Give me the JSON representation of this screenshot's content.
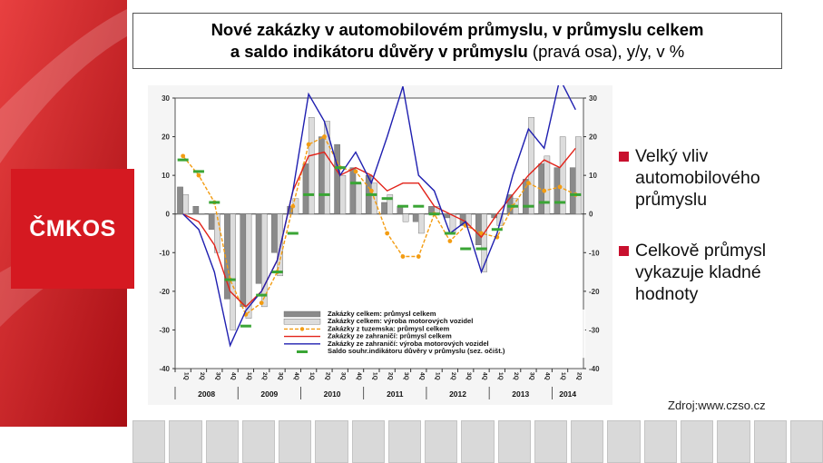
{
  "title": {
    "line1": "Nové zakázky v automobilovém průmyslu, v průmyslu celkem",
    "line2_bold": "a saldo indikátoru důvěry v průmyslu",
    "line2_rest": " (pravá osa), y/y, v %"
  },
  "logo": {
    "text": "ČMKOS"
  },
  "bullets": [
    {
      "text": "Velký vliv automobilového průmyslu"
    },
    {
      "text": "Celkově průmysl vykazuje kladné hodnoty"
    }
  ],
  "source": "Zdroj:www.czso.cz",
  "colors": {
    "red": "#e2231a",
    "blue": "#1f1fb0",
    "orange": "#f39c12",
    "green": "#3aa535",
    "darkbar": "#8a8a8a",
    "lightbar": "#dcdcdc"
  },
  "chart_data": {
    "type": "bar",
    "ylim": [
      -40,
      30
    ],
    "yticks": [
      "30",
      "20",
      "10",
      "0",
      "-10",
      "-20",
      "-30",
      "-40"
    ],
    "ytick_values": [
      30,
      20,
      10,
      0,
      -10,
      -20,
      -30,
      -40
    ],
    "quarter_labels": [
      "1Q",
      "2Q",
      "3Q",
      "4Q",
      "1Q",
      "2Q",
      "3Q",
      "4Q",
      "1Q",
      "2Q",
      "3Q",
      "4Q",
      "1Q",
      "2Q",
      "3Q",
      "4Q",
      "1Q",
      "2Q",
      "3Q",
      "4Q",
      "1Q",
      "2Q",
      "3Q",
      "4Q",
      "1Q",
      "2Q"
    ],
    "year_labels": [
      "2008",
      "2009",
      "2010",
      "2011",
      "2012",
      "2013",
      "2014"
    ],
    "series": [
      {
        "name": "Zakázky celkem: průmysl celkem",
        "kind": "bar",
        "color": "#8a8a8a",
        "values": [
          7,
          2,
          -4,
          -22,
          -24,
          -18,
          -10,
          2,
          13,
          20,
          18,
          12,
          10,
          3,
          2,
          -2,
          2,
          -1,
          -3,
          -8,
          -1,
          5,
          9,
          13,
          12,
          12
        ]
      },
      {
        "name": "Zakázky celkem: výroba motorových vozidel",
        "kind": "bar",
        "color": "#dcdcdc",
        "values": [
          5,
          0,
          -10,
          -30,
          -27,
          -24,
          -16,
          4,
          25,
          24,
          10,
          8,
          8,
          5,
          -2,
          -5,
          2,
          -5,
          -3,
          -15,
          -3,
          4,
          25,
          15,
          20,
          20
        ]
      },
      {
        "name": "Zakázky z tuzemska: průmysl celkem",
        "kind": "dashed",
        "color": "#f39c12",
        "values": [
          15,
          10,
          3,
          -17,
          -26,
          -23,
          -15,
          2,
          18,
          20,
          12,
          11,
          6,
          -5,
          -11,
          -11,
          0,
          -7,
          -3,
          -5,
          -6,
          2,
          8,
          6,
          7,
          5
        ]
      },
      {
        "name": "Zakázky ze zahraničí: průmysl celkem",
        "kind": "line",
        "color": "#e2231a",
        "values": [
          0,
          -2,
          -8,
          -20,
          -24,
          -20,
          -12,
          6,
          15,
          16,
          10,
          12,
          10,
          6,
          8,
          8,
          2,
          0,
          -2,
          -6,
          0,
          5,
          10,
          14,
          12,
          17
        ]
      },
      {
        "name": "Zakázky ze zahraničí: výroba motorových vozidel",
        "kind": "line",
        "color": "#1f1fb0",
        "values": [
          0,
          -4,
          -15,
          -34,
          -25,
          -20,
          -12,
          6,
          31,
          24,
          10,
          16,
          8,
          20,
          33,
          10,
          6,
          -5,
          -2,
          -15,
          -5,
          10,
          22,
          17,
          35,
          27
        ]
      },
      {
        "name": "Saldo souhr.indikátoru důvěry v průmyslu (sez. očišt.)",
        "kind": "marker",
        "color": "#3aa535",
        "values": [
          14,
          11,
          3,
          -17,
          -29,
          -21,
          -15,
          -5,
          5,
          5,
          12,
          8,
          5,
          4,
          2,
          2,
          0,
          -5,
          -9,
          -9,
          -4,
          2,
          2,
          3,
          3,
          5
        ]
      }
    ]
  }
}
